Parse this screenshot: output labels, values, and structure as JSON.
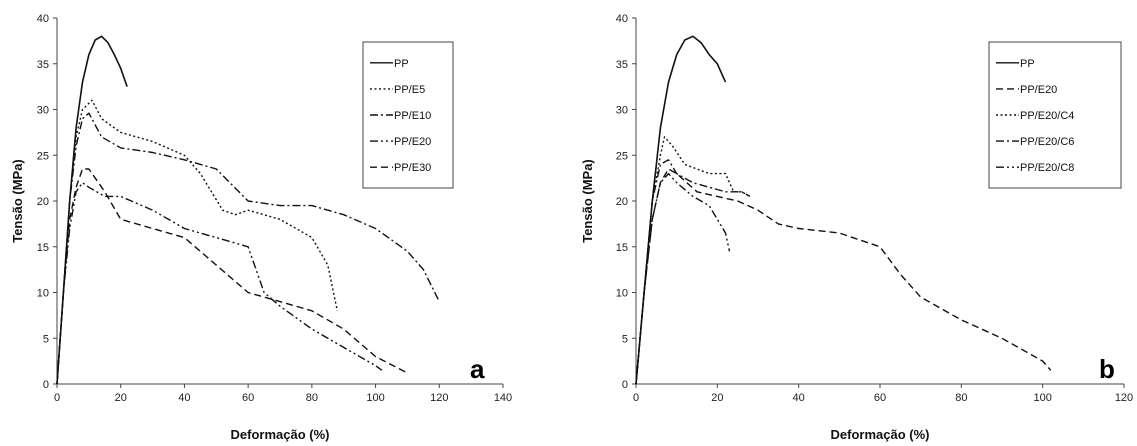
{
  "chart_data": [
    {
      "type": "line",
      "panel_letter": "a",
      "xlabel": "Deformação (%)",
      "ylabel": "Tensão (MPa)",
      "xlim": [
        0,
        140
      ],
      "ylim": [
        0,
        40
      ],
      "xticks": [
        "0",
        "20",
        "40",
        "60",
        "80",
        "100",
        "120",
        "140"
      ],
      "yticks": [
        "0",
        "5",
        "10",
        "15",
        "20",
        "25",
        "30",
        "35",
        "40"
      ],
      "grid": false,
      "legend": "top-right",
      "series": [
        {
          "name": "PP",
          "style": "solid",
          "points": [
            [
              0,
              0
            ],
            [
              2,
              10
            ],
            [
              4,
              20
            ],
            [
              6,
              28
            ],
            [
              8,
              33
            ],
            [
              10,
              36
            ],
            [
              12,
              37.6
            ],
            [
              14,
              38
            ],
            [
              16,
              37.3
            ],
            [
              18,
              36
            ],
            [
              20,
              34.5
            ],
            [
              22,
              32.5
            ]
          ]
        },
        {
          "name": "PP/E5",
          "style": "dotted",
          "points": [
            [
              0,
              0
            ],
            [
              2,
              10
            ],
            [
              4,
              20
            ],
            [
              6,
              27
            ],
            [
              8,
              30
            ],
            [
              11,
              31
            ],
            [
              14,
              29
            ],
            [
              20,
              27.5
            ],
            [
              30,
              26.5
            ],
            [
              40,
              25
            ],
            [
              45,
              23
            ],
            [
              52,
              19
            ],
            [
              56,
              18.5
            ],
            [
              60,
              19
            ],
            [
              70,
              18
            ],
            [
              80,
              16
            ],
            [
              85,
              13
            ],
            [
              88,
              8
            ]
          ]
        },
        {
          "name": "PP/E10",
          "style": "dashdot",
          "points": [
            [
              0,
              0
            ],
            [
              2,
              10
            ],
            [
              4,
              20
            ],
            [
              6,
              26
            ],
            [
              8,
              29
            ],
            [
              10,
              29.6
            ],
            [
              14,
              27
            ],
            [
              20,
              25.8
            ],
            [
              30,
              25.3
            ],
            [
              40,
              24.5
            ],
            [
              50,
              23.5
            ],
            [
              60,
              20
            ],
            [
              70,
              19.5
            ],
            [
              80,
              19.5
            ],
            [
              90,
              18.5
            ],
            [
              100,
              17
            ],
            [
              110,
              14.5
            ],
            [
              115,
              12.5
            ],
            [
              120,
              9
            ]
          ]
        },
        {
          "name": "PP/E20",
          "style": "dashdotdot",
          "points": [
            [
              0,
              0
            ],
            [
              2,
              10
            ],
            [
              4,
              17
            ],
            [
              6,
              21
            ],
            [
              8,
              22
            ],
            [
              10,
              21.5
            ],
            [
              15,
              20.5
            ],
            [
              20,
              20.5
            ],
            [
              30,
              19
            ],
            [
              40,
              17
            ],
            [
              50,
              16
            ],
            [
              60,
              15
            ],
            [
              65,
              10
            ],
            [
              70,
              8.5
            ],
            [
              80,
              6
            ],
            [
              90,
              4
            ],
            [
              100,
              2
            ],
            [
              102,
              1.5
            ]
          ]
        },
        {
          "name": "PP/E30",
          "style": "dashed",
          "points": [
            [
              0,
              0
            ],
            [
              2,
              10
            ],
            [
              4,
              18
            ],
            [
              6,
              21.5
            ],
            [
              8,
              23.5
            ],
            [
              10,
              23.5
            ],
            [
              15,
              21
            ],
            [
              20,
              18
            ],
            [
              30,
              17
            ],
            [
              40,
              16
            ],
            [
              50,
              13
            ],
            [
              60,
              10
            ],
            [
              70,
              9
            ],
            [
              80,
              8
            ],
            [
              90,
              6
            ],
            [
              100,
              3
            ],
            [
              110,
              1.2
            ]
          ]
        }
      ]
    },
    {
      "type": "line",
      "panel_letter": "b",
      "xlabel": "Deformação (%)",
      "ylabel": "Tensão (MPa)",
      "xlim": [
        0,
        120
      ],
      "ylim": [
        0,
        40
      ],
      "xticks": [
        "0",
        "20",
        "40",
        "60",
        "80",
        "100",
        "120"
      ],
      "yticks": [
        "0",
        "5",
        "10",
        "15",
        "20",
        "25",
        "30",
        "35",
        "40"
      ],
      "grid": false,
      "legend": "top-right",
      "series": [
        {
          "name": "PP",
          "style": "solid",
          "points": [
            [
              0,
              0
            ],
            [
              2,
              10
            ],
            [
              4,
              20
            ],
            [
              6,
              28
            ],
            [
              8,
              33
            ],
            [
              10,
              36
            ],
            [
              12,
              37.6
            ],
            [
              14,
              38
            ],
            [
              16,
              37.3
            ],
            [
              18,
              36
            ],
            [
              20,
              35
            ],
            [
              22,
              33
            ]
          ]
        },
        {
          "name": "PP/E20",
          "style": "dashed",
          "points": [
            [
              0,
              0
            ],
            [
              2,
              10
            ],
            [
              4,
              18
            ],
            [
              6,
              22
            ],
            [
              8,
              23.5
            ],
            [
              10,
              23
            ],
            [
              15,
              21
            ],
            [
              20,
              20.5
            ],
            [
              25,
              20
            ],
            [
              30,
              19
            ],
            [
              35,
              17.5
            ],
            [
              40,
              17
            ],
            [
              50,
              16.5
            ],
            [
              60,
              15
            ],
            [
              65,
              12
            ],
            [
              70,
              9.5
            ],
            [
              80,
              7
            ],
            [
              90,
              5
            ],
            [
              100,
              2.5
            ],
            [
              102,
              1.5
            ]
          ]
        },
        {
          "name": "PP/E20/C4",
          "style": "dotted",
          "points": [
            [
              0,
              0
            ],
            [
              2,
              10
            ],
            [
              4,
              20
            ],
            [
              6,
              25
            ],
            [
              7,
              27
            ],
            [
              9,
              26
            ],
            [
              12,
              24
            ],
            [
              18,
              23
            ],
            [
              22,
              23
            ],
            [
              24,
              21
            ],
            [
              26,
              21
            ],
            [
              28,
              20.5
            ]
          ]
        },
        {
          "name": "PP/E20/C6",
          "style": "dashdot",
          "points": [
            [
              0,
              0
            ],
            [
              2,
              10
            ],
            [
              4,
              20
            ],
            [
              6,
              24
            ],
            [
              8,
              24.5
            ],
            [
              10,
              23
            ],
            [
              14,
              22
            ],
            [
              18,
              21.5
            ],
            [
              22,
              21
            ],
            [
              26,
              21
            ],
            [
              28,
              20.5
            ]
          ]
        },
        {
          "name": "PP/E20/C8",
          "style": "dashdotdot",
          "points": [
            [
              0,
              0
            ],
            [
              2,
              10
            ],
            [
              4,
              18
            ],
            [
              6,
              22
            ],
            [
              8,
              23
            ],
            [
              10,
              22
            ],
            [
              14,
              20.5
            ],
            [
              18,
              19.5
            ],
            [
              20,
              18
            ],
            [
              22,
              16.5
            ],
            [
              23,
              14.5
            ]
          ]
        }
      ]
    }
  ]
}
